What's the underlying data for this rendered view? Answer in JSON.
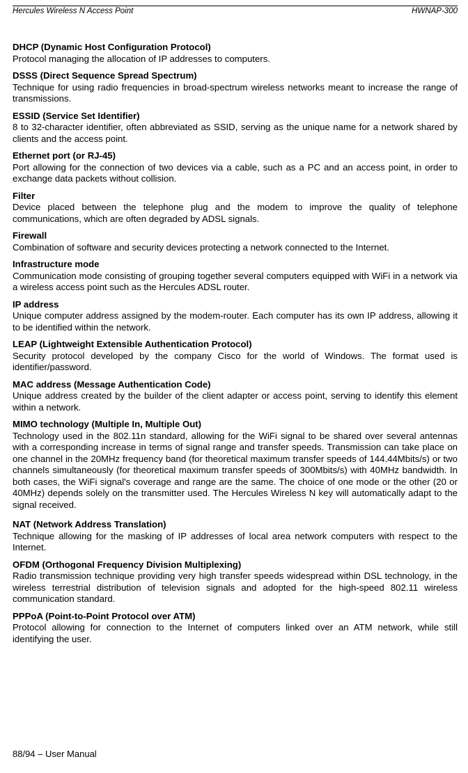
{
  "header": {
    "left": "Hercules Wireless N Access Point",
    "right": "HWNAP-300"
  },
  "entries": [
    {
      "term": "DHCP (Dynamic Host Configuration Protocol)",
      "def": "Protocol managing the allocation of IP addresses to computers."
    },
    {
      "term": "DSSS (Direct Sequence Spread Spectrum)",
      "def": "Technique for using radio frequencies in broad-spectrum wireless networks meant to increase the range of transmissions."
    },
    {
      "term": "ESSID (Service Set Identifier)",
      "def": "8 to 32-character identifier, often abbreviated as SSID, serving as the unique name for a network shared by clients and the access point."
    },
    {
      "term": "Ethernet port (or RJ-45)",
      "def": "Port allowing for the connection of two devices via a cable, such as a PC and an access point, in order to exchange data packets without collision."
    },
    {
      "term": "Filter",
      "def": "Device placed between the telephone plug and the modem to improve the quality of telephone communications, which are often degraded by ADSL signals."
    },
    {
      "term": "Firewall",
      "def": "Combination of software and security devices protecting a network connected to the Internet."
    },
    {
      "term": "Infrastructure mode",
      "def": "Communication mode consisting of grouping together several computers equipped with WiFi in a network via a wireless access point such as the Hercules ADSL router."
    },
    {
      "term": "IP address",
      "def": "Unique computer address assigned by the modem-router.  Each computer has its own IP address, allowing it to be identified within the network."
    },
    {
      "term": "LEAP (Lightweight Extensible Authentication Protocol)",
      "def": "Security protocol developed by the company Cisco for the world of Windows.  The format used is identifier/password."
    },
    {
      "term": "MAC address (Message Authentication Code)",
      "def": "Unique address created by the builder of the client adapter or access point, serving to identify this element within a network."
    },
    {
      "term": "MIMO technology (Multiple In, Multiple Out)",
      "def": "Technology used in the 802.11n standard, allowing for the WiFi signal to be shared over several antennas with a corresponding increase in terms of signal range and transfer speeds.  Transmission can take place on one channel in the 20MHz frequency band (for theoretical maximum transfer speeds of 144.44Mbits/s) or two channels simultaneously (for theoretical maximum transfer speeds of 300Mbits/s) with 40MHz bandwidth.  In both cases, the WiFi signal's coverage and range are the same.  The choice of one mode or the other (20 or 40MHz) depends solely on the transmitter used.  The Hercules Wireless N key will automatically adapt to the signal received.",
      "gap": true
    },
    {
      "term": "NAT (Network Address Translation)",
      "def": "Technique allowing for the masking of IP addresses of local area network computers with respect to the Internet."
    },
    {
      "term": "OFDM (Orthogonal Frequency Division Multiplexing)",
      "def": "Radio transmission technique providing very high transfer speeds widespread within DSL technology, in the wireless terrestrial distribution of television signals and adopted for the high-speed 802.11 wireless communication standard."
    },
    {
      "term": "PPPoA (Point-to-Point Protocol over ATM)",
      "def": "Protocol allowing for connection to the Internet of computers linked over an ATM network, while still identifying the user."
    }
  ],
  "footer": "88/94 – User Manual"
}
